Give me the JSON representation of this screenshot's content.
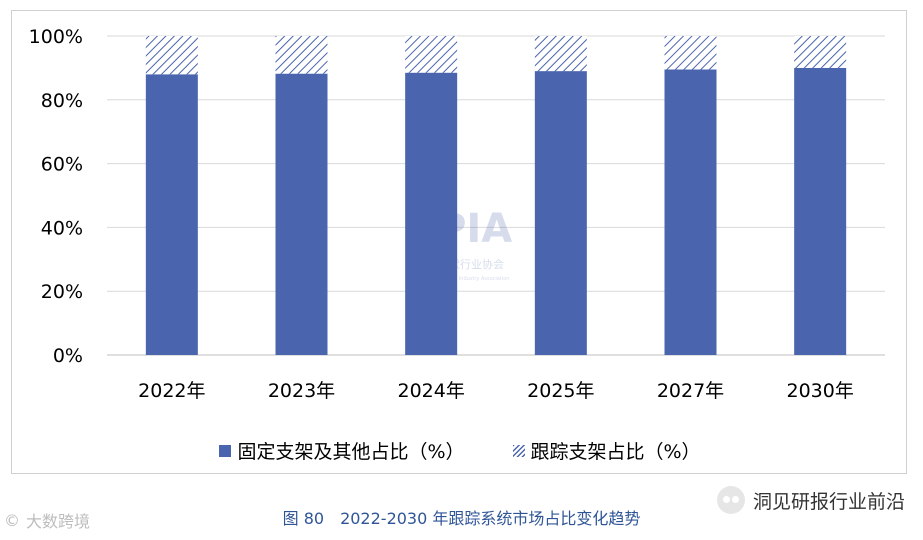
{
  "chart_data": {
    "type": "bar",
    "stacked": true,
    "categories": [
      "2022年",
      "2023年",
      "2024年",
      "2025年",
      "2027年",
      "2030年"
    ],
    "series": [
      {
        "name": "固定支架及其他占比（%）",
        "values": [
          88,
          88.2,
          88.5,
          89,
          89.5,
          90
        ],
        "color": "#4a65ae",
        "pattern": "solid"
      },
      {
        "name": "跟踪支架占比（%）",
        "values": [
          12,
          11.8,
          11.5,
          11,
          10.5,
          10
        ],
        "color": "#4a65ae",
        "pattern": "hatch"
      }
    ],
    "y_ticks": [
      "0%",
      "20%",
      "40%",
      "60%",
      "80%",
      "100%"
    ],
    "ylim": [
      0,
      100
    ],
    "grid": true,
    "legend_position": "bottom"
  },
  "watermark": {
    "text": "CPIA",
    "subtitle": "中国光伏行业协会",
    "subtitle_en": "China Photovoltaic Industry Association"
  },
  "caption": "图 80　2022-2030 年跟踪系统市场占比变化趋势",
  "bottom_left": {
    "text": "大数跨境",
    "icon": "copyright-icon"
  },
  "bottom_right": {
    "text": "洞见研报行业前沿",
    "icon": "wechat-icon"
  }
}
